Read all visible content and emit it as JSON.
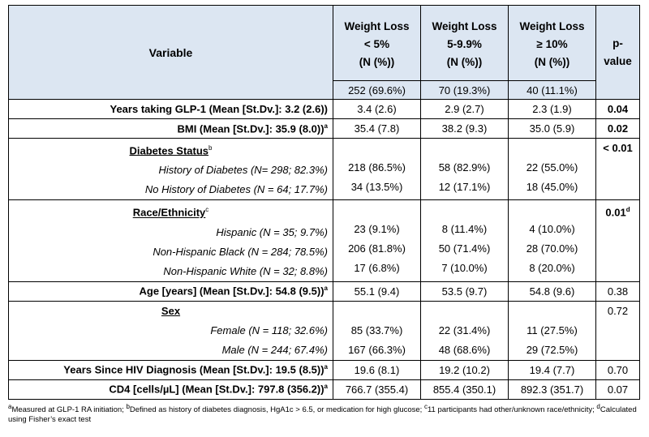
{
  "header": {
    "variable": "Variable",
    "groups": [
      {
        "l1": "Weight Loss",
        "l2": "< 5%",
        "l3": "(N (%))",
        "n": "252 (69.6%)"
      },
      {
        "l1": "Weight Loss",
        "l2": "5-9.9%",
        "l3": "(N (%))",
        "n": "70 (19.3%)"
      },
      {
        "l1": "Weight Loss",
        "l2": "≥ 10%",
        "l3": "(N (%))",
        "n": "40 (11.1%)"
      }
    ],
    "p1": "p-",
    "p2": "value"
  },
  "rows": {
    "years_glp1": {
      "label": "Years taking GLP-1 (Mean [St.Dv.]: 3.2 (2.6))",
      "sup": "",
      "v": [
        "3.4 (2.6)",
        "2.9 (2.7)",
        "2.3 (1.9)"
      ],
      "p": "0.04"
    },
    "bmi": {
      "label": "BMI (Mean [St.Dv.]: 35.9 (8.0))",
      "sup": "a",
      "v": [
        "35.4 (7.8)",
        "38.2 (9.3)",
        "35.0 (5.9)"
      ],
      "p": "0.02"
    },
    "diabetes": {
      "title": "Diabetes Status",
      "sup": "b",
      "p": "< 0.01",
      "psup": "",
      "items": [
        {
          "label": "History of Diabetes (N= 298; 82.3%)",
          "v": [
            "218 (86.5%)",
            "58 (82.9%)",
            "22 (55.0%)"
          ]
        },
        {
          "label": "No History of Diabetes (N = 64; 17.7%)",
          "v": [
            "34 (13.5%)",
            "12 (17.1%)",
            "18 (45.0%)"
          ]
        }
      ]
    },
    "race": {
      "title": "Race/Ethnicity",
      "sup": "c",
      "p": "0.01",
      "psup": "d",
      "items": [
        {
          "label": "Hispanic (N = 35; 9.7%)",
          "v": [
            "23 (9.1%)",
            "8 (11.4%)",
            "4 (10.0%)"
          ]
        },
        {
          "label": "Non-Hispanic Black (N = 284; 78.5%)",
          "v": [
            "206 (81.8%)",
            "50 (71.4%)",
            "28 (70.0%)"
          ]
        },
        {
          "label": "Non-Hispanic White (N = 32; 8.8%)",
          "v": [
            "17 (6.8%)",
            "7 (10.0%)",
            "8 (20.0%)"
          ]
        }
      ]
    },
    "age": {
      "label": "Age [years] (Mean [St.Dv.]: 54.8 (9.5))",
      "sup": "a",
      "v": [
        "55.1 (9.4)",
        "53.5 (9.7)",
        "54.8 (9.6)"
      ],
      "p": "0.38"
    },
    "sex": {
      "title": "Sex",
      "sup": "",
      "p": "0.72",
      "psup": "",
      "items": [
        {
          "label": "Female (N = 118; 32.6%)",
          "v": [
            "85 (33.7%)",
            "22 (31.4%)",
            "11 (27.5%)"
          ]
        },
        {
          "label": "Male (N = 244; 67.4%)",
          "v": [
            "167 (66.3%)",
            "48 (68.6%)",
            "29 (72.5%)"
          ]
        }
      ]
    },
    "hiv": {
      "label": "Years Since HIV Diagnosis (Mean [St.Dv.]: 19.5 (8.5))",
      "sup": "a",
      "v": [
        "19.6 (8.1)",
        "19.2 (10.2)",
        "19.4 (7.7)"
      ],
      "p": "0.70"
    },
    "cd4": {
      "label": "CD4 [cells/µL] (Mean [St.Dv.]: 797.8 (356.2))",
      "sup": "a",
      "v": [
        "766.7 (355.4)",
        "855.4 (350.1)",
        "892.3 (351.7)"
      ],
      "p": "0.07"
    }
  },
  "footnote": {
    "a_sup": "a",
    "a": "Measured at GLP-1 RA initiation; ",
    "b_sup": "b",
    "b": "Defined as history of diabetes diagnosis, HgA1c > 6.5, or medication for high glucose; ",
    "c_sup": "c",
    "c": "11 participants had other/unknown race/ethnicity; ",
    "d_sup": "d",
    "d": "Calculated using Fisher’s exact test"
  }
}
